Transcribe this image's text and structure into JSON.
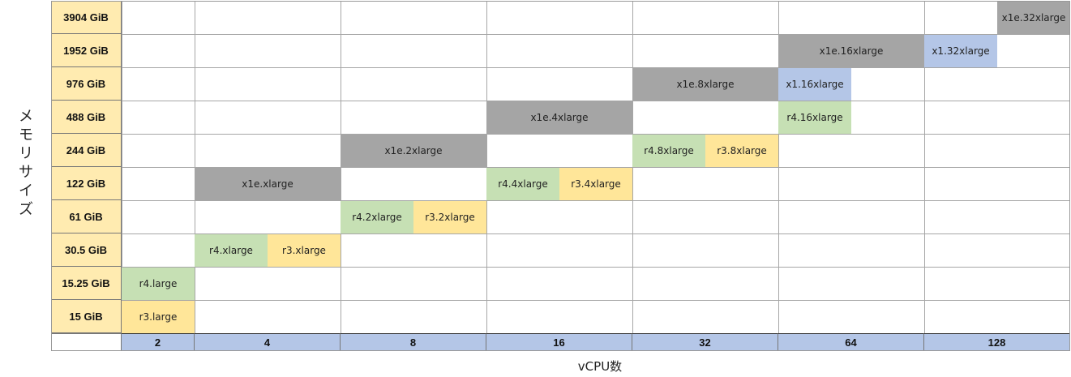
{
  "y_axis_label": "メモリサイズ",
  "x_axis_label": "vCPU数",
  "memory_rows": [
    "3904 GiB",
    "1952 GiB",
    "976 GiB",
    "488 GiB",
    "244 GiB",
    "122  GiB",
    "61 GiB",
    "30.5 GiB",
    "15.25 GiB",
    "15 GiB"
  ],
  "vcpu_columns": [
    "2",
    "4",
    "8",
    "16",
    "32",
    "64",
    "128"
  ],
  "colors": {
    "gray": "#a5a5a5",
    "green": "#c6e0b4",
    "yellow": "#ffe699",
    "blue": "#b4c6e7",
    "row_header": "#ffebb0",
    "col_header": "#b4c6e7"
  },
  "instances": [
    {
      "name": "x1e.32xlarge",
      "memory": "3904 GiB",
      "vcpu": "128",
      "family": "gray"
    },
    {
      "name": "x1e.16xlarge",
      "memory": "1952 GiB",
      "vcpu": "64",
      "family": "gray"
    },
    {
      "name": "x1.32xlarge",
      "memory": "1952 GiB",
      "vcpu": "128",
      "family": "blue"
    },
    {
      "name": "x1e.8xlarge",
      "memory": "976 GiB",
      "vcpu": "32",
      "family": "gray"
    },
    {
      "name": "x1.16xlarge",
      "memory": "976 GiB",
      "vcpu": "64",
      "family": "blue"
    },
    {
      "name": "x1e.4xlarge",
      "memory": "488 GiB",
      "vcpu": "16",
      "family": "gray"
    },
    {
      "name": "r4.16xlarge",
      "memory": "488 GiB",
      "vcpu": "64",
      "family": "green"
    },
    {
      "name": "x1e.2xlarge",
      "memory": "244 GiB",
      "vcpu": "8",
      "family": "gray"
    },
    {
      "name": "r4.8xlarge",
      "memory": "244 GiB",
      "vcpu": "32",
      "family": "green"
    },
    {
      "name": "r3.8xlarge",
      "memory": "244 GiB",
      "vcpu": "32",
      "family": "yellow"
    },
    {
      "name": "x1e.xlarge",
      "memory": "122  GiB",
      "vcpu": "4",
      "family": "gray"
    },
    {
      "name": "r4.4xlarge",
      "memory": "122  GiB",
      "vcpu": "16",
      "family": "green"
    },
    {
      "name": "r3.4xlarge",
      "memory": "122  GiB",
      "vcpu": "16",
      "family": "yellow"
    },
    {
      "name": "r4.2xlarge",
      "memory": "61 GiB",
      "vcpu": "8",
      "family": "green"
    },
    {
      "name": "r3.2xlarge",
      "memory": "61 GiB",
      "vcpu": "8",
      "family": "yellow"
    },
    {
      "name": "r4.xlarge",
      "memory": "30.5 GiB",
      "vcpu": "4",
      "family": "green"
    },
    {
      "name": "r3.xlarge",
      "memory": "30.5 GiB",
      "vcpu": "4",
      "family": "yellow"
    },
    {
      "name": "r4.large",
      "memory": "15.25 GiB",
      "vcpu": "2",
      "family": "green"
    },
    {
      "name": "r3.large",
      "memory": "15 GiB",
      "vcpu": "2",
      "family": "yellow"
    }
  ]
}
